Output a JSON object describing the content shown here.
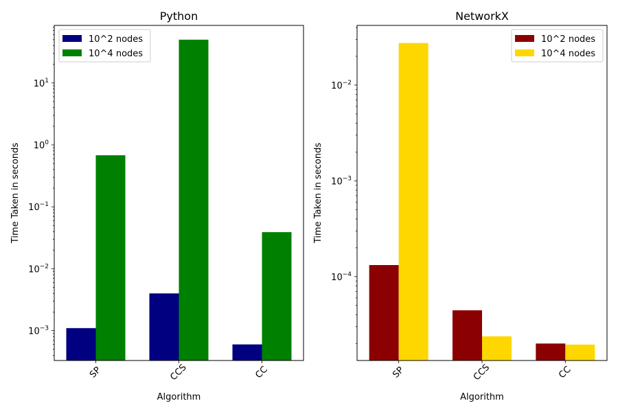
{
  "chart_data": [
    {
      "type": "bar",
      "title": "Python",
      "xlabel": "Algorithm",
      "ylabel": "Time Taken in seconds",
      "yscale": "log",
      "ylim": [
        0.00033,
        85
      ],
      "yticks": [
        {
          "value": 0.001,
          "base": "10",
          "exp": "−3"
        },
        {
          "value": 0.01,
          "base": "10",
          "exp": "−2"
        },
        {
          "value": 0.1,
          "base": "10",
          "exp": "−1"
        },
        {
          "value": 1,
          "base": "10",
          "exp": "0"
        },
        {
          "value": 10,
          "base": "10",
          "exp": "1"
        }
      ],
      "categories": [
        "SP",
        "CCS",
        "CC"
      ],
      "series": [
        {
          "name": "10^2 nodes",
          "color": "#000080",
          "values": [
            0.0011,
            0.004,
            0.0006
          ]
        },
        {
          "name": "10^4 nodes",
          "color": "#008000",
          "values": [
            0.68,
            50,
            0.039
          ]
        }
      ],
      "legend": "top-left",
      "grid": false
    },
    {
      "type": "bar",
      "title": "NetworkX",
      "xlabel": "Algorithm",
      "ylabel": "Time Taken in seconds",
      "yscale": "log",
      "ylim": [
        1.33e-05,
        0.042
      ],
      "yticks": [
        {
          "value": 0.0001,
          "base": "10",
          "exp": "−4"
        },
        {
          "value": 0.001,
          "base": "10",
          "exp": "−3"
        },
        {
          "value": 0.01,
          "base": "10",
          "exp": "−2"
        }
      ],
      "categories": [
        "SP",
        "CCS",
        "CC"
      ],
      "series": [
        {
          "name": "10^2 nodes",
          "color": "#8b0000",
          "values": [
            0.000132,
            4.45e-05,
            2e-05
          ]
        },
        {
          "name": "10^4 nodes",
          "color": "#ffd700",
          "values": [
            0.0275,
            2.38e-05,
            1.95e-05
          ]
        }
      ],
      "legend": "top-right",
      "grid": false
    }
  ]
}
